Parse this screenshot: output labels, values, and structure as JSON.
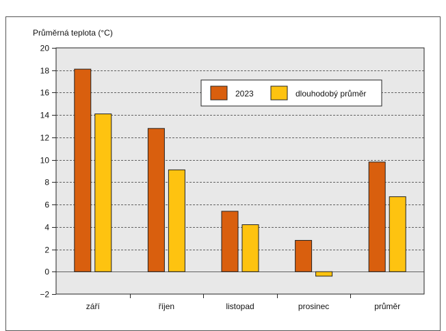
{
  "chart_data": {
    "type": "bar",
    "ylabel": "Průměrná teplota (°C)",
    "categories": [
      "září",
      "říjen",
      "listopad",
      "prosinec",
      "průměr"
    ],
    "series": [
      {
        "name": "2023",
        "values": [
          18.1,
          12.8,
          5.4,
          2.8,
          9.8
        ],
        "color": "#d95f0e"
      },
      {
        "name": "dlouhodobý průměr",
        "values": [
          14.1,
          9.1,
          4.2,
          -0.4,
          6.7
        ],
        "color": "#fec310"
      }
    ],
    "ylim": [
      -2,
      20
    ],
    "yticks": [
      -2,
      0,
      2,
      4,
      6,
      8,
      10,
      12,
      14,
      16,
      18,
      20
    ],
    "ytick_labels": [
      "−2",
      "0",
      "2",
      "4",
      "6",
      "8",
      "10",
      "12",
      "14",
      "16",
      "18",
      "20"
    ],
    "grid": true,
    "legend_position": "top-right"
  }
}
